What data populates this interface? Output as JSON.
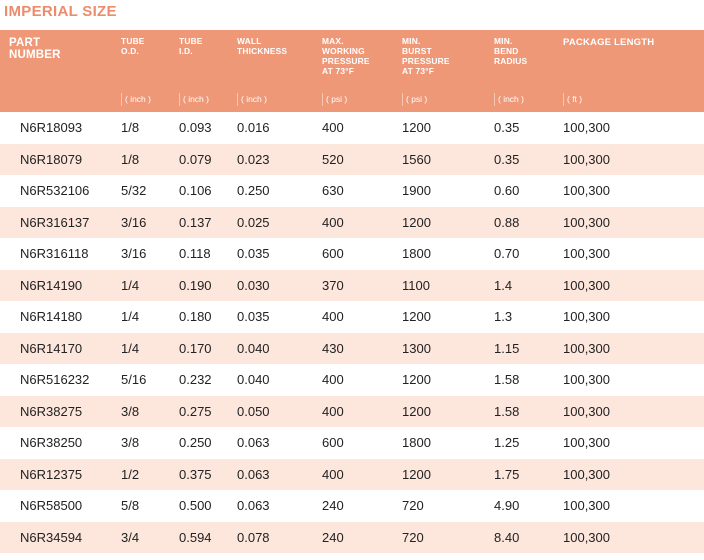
{
  "title": "IMPERIAL SIZE",
  "headers": [
    [
      "PART",
      "NUMBER"
    ],
    [
      "TUBE",
      "O.D."
    ],
    [
      "TUBE",
      "I.D."
    ],
    [
      "WALL",
      "THICKNESS"
    ],
    [
      "MAX.",
      "WORKING",
      "PRESSURE",
      "AT 73°F"
    ],
    [
      "MIN.",
      "BURST",
      "PRESSURE",
      "AT 73°F"
    ],
    [
      "MIN.",
      "BEND",
      "RADIUS"
    ],
    [
      "PACKAGE LENGTH"
    ]
  ],
  "units": [
    "",
    "( inch )",
    "( inch )",
    "( inch )",
    "( psi )",
    "( psi )",
    "( inch )",
    "( ft )"
  ],
  "rows": [
    [
      "N6R18093",
      "1/8",
      "0.093",
      "0.016",
      "400",
      "1200",
      "0.35",
      "100,300"
    ],
    [
      "N6R18079",
      "1/8",
      "0.079",
      "0.023",
      "520",
      "1560",
      "0.35",
      "100,300"
    ],
    [
      "N6R532106",
      "5/32",
      "0.106",
      "0.250",
      "630",
      "1900",
      "0.60",
      "100,300"
    ],
    [
      "N6R316137",
      "3/16",
      "0.137",
      "0.025",
      "400",
      "1200",
      "0.88",
      "100,300"
    ],
    [
      "N6R316118",
      "3/16",
      "0.118",
      "0.035",
      "600",
      "1800",
      "0.70",
      "100,300"
    ],
    [
      "N6R14190",
      "1/4",
      "0.190",
      "0.030",
      "370",
      "1100",
      "1.4",
      "100,300"
    ],
    [
      "N6R14180",
      "1/4",
      "0.180",
      "0.035",
      "400",
      "1200",
      "1.3",
      "100,300"
    ],
    [
      "N6R14170",
      "1/4",
      "0.170",
      "0.040",
      "430",
      "1300",
      "1.15",
      "100,300"
    ],
    [
      "N6R516232",
      "5/16",
      "0.232",
      "0.040",
      "400",
      "1200",
      "1.58",
      "100,300"
    ],
    [
      "N6R38275",
      "3/8",
      "0.275",
      "0.050",
      "400",
      "1200",
      "1.58",
      "100,300"
    ],
    [
      "N6R38250",
      "3/8",
      "0.250",
      "0.063",
      "600",
      "1800",
      "1.25",
      "100,300"
    ],
    [
      "N6R12375",
      "1/2",
      "0.375",
      "0.063",
      "400",
      "1200",
      "1.75",
      "100,300"
    ],
    [
      "N6R58500",
      "5/8",
      "0.500",
      "0.063",
      "240",
      "720",
      "4.90",
      "100,300"
    ],
    [
      "N6R34594",
      "3/4",
      "0.594",
      "0.078",
      "240",
      "720",
      "8.40",
      "100,300"
    ]
  ],
  "colors": {
    "header_bg": "#ef9878",
    "title": "#ec8c6c",
    "row_shade": "#fde6dc"
  }
}
